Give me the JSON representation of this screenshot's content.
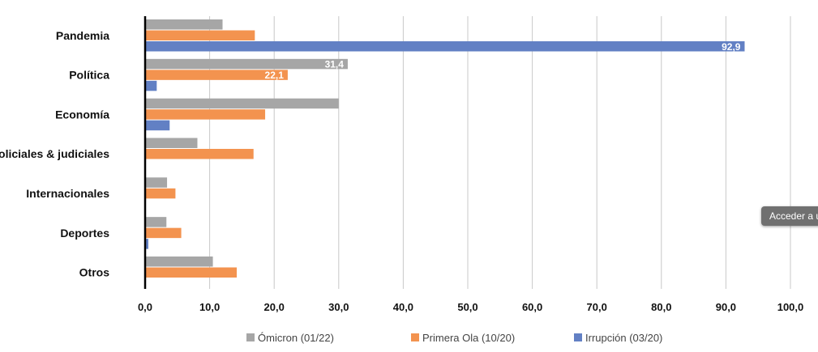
{
  "chart_data": {
    "type": "bar",
    "orientation": "horizontal",
    "categories": [
      "Pandemia",
      "Política",
      "Economía",
      "Policiales & judiciales",
      "Internacionales",
      "Deportes",
      "Otros"
    ],
    "series": [
      {
        "name": "Ómicron (01/22)",
        "color": "#a6a6a6",
        "values": [
          12.0,
          31.4,
          30.0,
          8.1,
          3.4,
          3.3,
          10.5
        ]
      },
      {
        "name": "Primera Ola (10/20)",
        "color": "#f3934f",
        "values": [
          17.0,
          22.1,
          18.6,
          16.8,
          4.7,
          5.6,
          14.2
        ]
      },
      {
        "name": "Irrupción (03/20)",
        "color": "#6280c4",
        "values": [
          92.9,
          1.8,
          3.8,
          0,
          0,
          0.5,
          0
        ]
      }
    ],
    "data_labels": [
      {
        "series": 2,
        "category": 0,
        "text": "92,9"
      },
      {
        "series": 0,
        "category": 1,
        "text": "31,4"
      },
      {
        "series": 1,
        "category": 1,
        "text": "22,1"
      }
    ],
    "xlim": [
      0,
      100
    ],
    "x_ticks": [
      "0,0",
      "10,0",
      "20,0",
      "30,0",
      "40,0",
      "50,0",
      "60,0",
      "70,0",
      "80,0",
      "90,0",
      "100,0"
    ],
    "grid": "vertical",
    "legend_position": "bottom"
  },
  "tooltip": {
    "text": "Acceder a u"
  }
}
